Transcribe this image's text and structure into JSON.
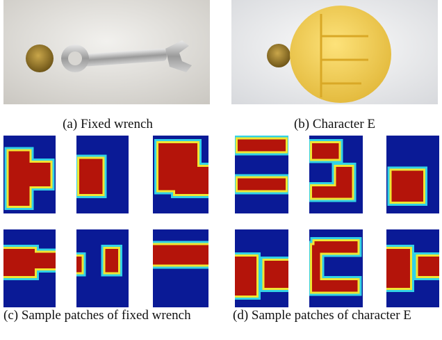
{
  "figure": {
    "subfigures": [
      {
        "caption": "(a) Fixed wrench"
      },
      {
        "caption": "(b) Character E"
      },
      {
        "caption": "(c) Sample patches of fixed wrench"
      },
      {
        "caption": "(d) Sample patches of character E"
      }
    ]
  }
}
